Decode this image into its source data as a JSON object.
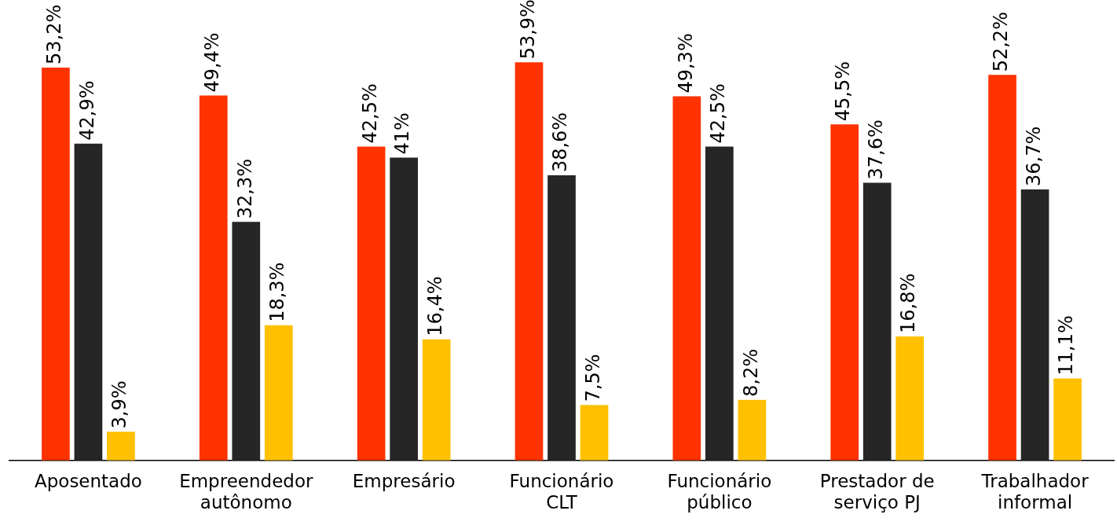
{
  "chart_data": {
    "type": "bar",
    "categories": [
      "Aposentado",
      "Empreendedor autônomo",
      "Empresário",
      "Funcionário CLT",
      "Funcionário público",
      "Prestador de serviço PJ",
      "Trabalhador informal"
    ],
    "series": [
      {
        "color": "#ff3300",
        "values": [
          53.2,
          49.4,
          42.5,
          53.9,
          49.3,
          45.5,
          52.2
        ],
        "value_labels": [
          "53,2%",
          "49,4%",
          "42,5%",
          "53,9%",
          "49,3%",
          "45,5%",
          "52,2%"
        ]
      },
      {
        "color": "#262626",
        "values": [
          42.9,
          32.3,
          41,
          38.6,
          42.5,
          37.6,
          36.7
        ],
        "value_labels": [
          "42,9%",
          "32,3%",
          "41%",
          "38,6%",
          "42,5%",
          "37,6%",
          "36,7%"
        ]
      },
      {
        "color": "#ffc000",
        "values": [
          3.9,
          18.3,
          16.4,
          7.5,
          8.2,
          16.8,
          11.1
        ],
        "value_labels": [
          "3,9%",
          "18,3%",
          "16,4%",
          "7,5%",
          "8,2%",
          "16,8%",
          "11,1%"
        ]
      }
    ],
    "grid": false,
    "legend": false
  }
}
